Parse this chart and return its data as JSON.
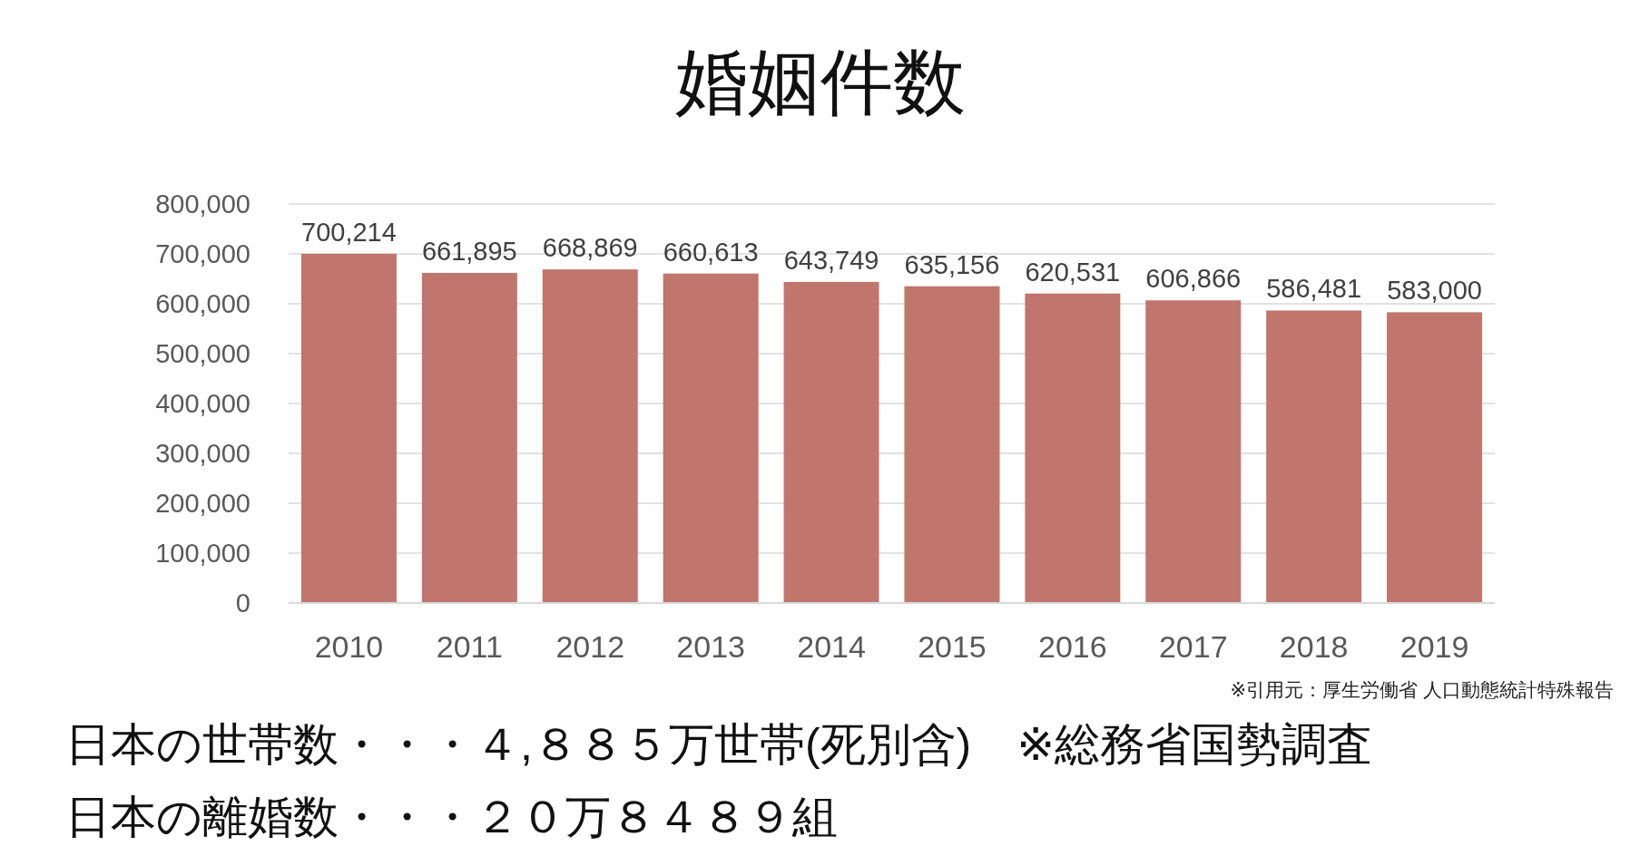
{
  "chart_data": {
    "type": "bar",
    "title": "婚姻件数",
    "categories": [
      "2010",
      "2011",
      "2012",
      "2013",
      "2014",
      "2015",
      "2016",
      "2017",
      "2018",
      "2019"
    ],
    "values": [
      700214,
      661895,
      668869,
      660613,
      643749,
      635156,
      620531,
      606866,
      586481,
      583000
    ],
    "value_labels": [
      "700,214",
      "661,895",
      "668,869",
      "660,613",
      "643,749",
      "635,156",
      "620,531",
      "606,866",
      "586,481",
      "583,000"
    ],
    "color": "#c0756d",
    "ylim": [
      0,
      800000
    ],
    "yticks": [
      {
        "value": 0,
        "label": "0"
      },
      {
        "value": 100000,
        "label": "100,000"
      },
      {
        "value": 200000,
        "label": "200,000"
      },
      {
        "value": 300000,
        "label": "300,000"
      },
      {
        "value": 400000,
        "label": "400,000"
      },
      {
        "value": 500000,
        "label": "500,000"
      },
      {
        "value": 600000,
        "label": "600,000"
      },
      {
        "value": 700000,
        "label": "700,000"
      },
      {
        "value": 800000,
        "label": "800,000"
      }
    ],
    "grid": "y",
    "annotations": [
      "※引用元：厚生労働省 人口動態統計特殊報告",
      "日本の世帯数・・・４,８８５万世帯(死別含)　※総務省国勢調査",
      "日本の離婚数・・・２０万８４８９組"
    ]
  }
}
